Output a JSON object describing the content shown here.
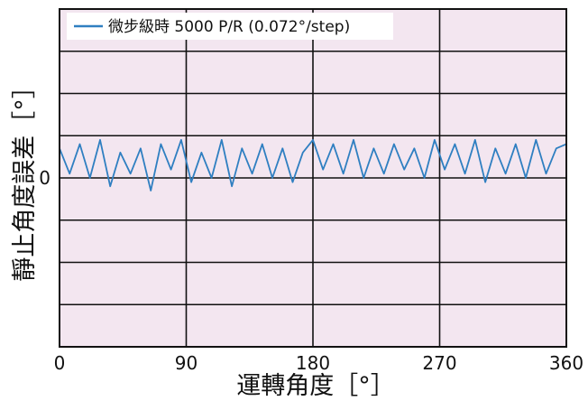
{
  "chart_data": {
    "type": "line",
    "title": "",
    "xlabel": "運轉角度［°］",
    "ylabel": "靜止角度誤差［°］",
    "xlim": [
      0,
      360
    ],
    "ylim": [
      -4,
      4
    ],
    "x_ticks": [
      "0",
      "90",
      "180",
      "270",
      "360"
    ],
    "y_ticks": [
      "0"
    ],
    "grid": true,
    "legend_position": "top-left",
    "series": [
      {
        "name": "微步級時 5000 P/R (0.072°/step)",
        "color": "#2f7fc1",
        "x": [
          0,
          7.2,
          14.4,
          21.6,
          28.8,
          36,
          43.2,
          50.4,
          57.6,
          64.8,
          72,
          79.2,
          86.4,
          93.6,
          100.8,
          108,
          115.2,
          122.4,
          129.6,
          136.8,
          144,
          151.2,
          158.4,
          165.6,
          172.8,
          180,
          187.2,
          194.4,
          201.6,
          208.8,
          216,
          223.2,
          230.4,
          237.6,
          244.8,
          252,
          259.2,
          266.4,
          273.6,
          280.8,
          288,
          295.2,
          302.4,
          309.6,
          316.8,
          324,
          331.2,
          338.4,
          345.6,
          352.8,
          360
        ],
        "y": [
          0.7,
          0.1,
          0.8,
          0.0,
          0.9,
          -0.2,
          0.6,
          0.1,
          0.7,
          -0.3,
          0.8,
          0.2,
          0.9,
          -0.1,
          0.6,
          0.0,
          0.9,
          -0.2,
          0.7,
          0.1,
          0.8,
          0.0,
          0.7,
          -0.1,
          0.6,
          0.9,
          0.2,
          0.8,
          0.1,
          0.9,
          0.0,
          0.7,
          0.1,
          0.8,
          0.2,
          0.7,
          0.0,
          0.9,
          0.2,
          0.8,
          0.1,
          0.9,
          -0.1,
          0.7,
          0.1,
          0.8,
          0.0,
          0.9,
          0.1,
          0.7,
          0.8
        ]
      }
    ]
  }
}
